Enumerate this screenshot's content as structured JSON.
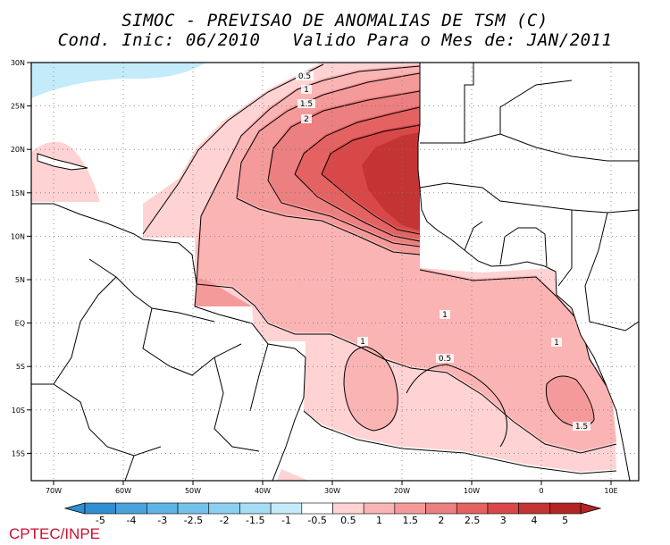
{
  "title_line1": "SIMOC - PREVISAO DE ANOMALIAS DE TSM (C)",
  "title_line2": "Cond. Inic: 06/2010   Valido Para o Mes de: JAN/2011",
  "credit": "CPTEC/INPE",
  "latitude_labels": [
    "30N",
    "25N",
    "20N",
    "15N",
    "10N",
    "5N",
    "EQ",
    "5S",
    "10S",
    "15S"
  ],
  "longitude_labels": [
    "70W",
    "60W",
    "50W",
    "40W",
    "30W",
    "20W",
    "10W",
    "0",
    "10E"
  ],
  "contour_labels": [
    "0.5",
    "1",
    "1.5",
    "2",
    "1",
    "1",
    "0.5",
    "1",
    "1.5"
  ],
  "colorbar": {
    "labels": [
      "-5",
      "-4",
      "-3",
      "-2.5",
      "-2",
      "-1.5",
      "-1",
      "-0.5",
      "0.5",
      "1",
      "1.5",
      "2",
      "2.5",
      "3",
      "4",
      "5"
    ],
    "colors": [
      "#2f8fd1",
      "#4aa3dc",
      "#5fb4e6",
      "#74c2ec",
      "#8ccff1",
      "#a6dcf5",
      "#c4ebfa",
      "#ffffff",
      "#ffd3d3",
      "#fbb4b4",
      "#f59a9a",
      "#ec7f7f",
      "#e46262",
      "#d94848",
      "#c53434",
      "#b32424"
    ]
  },
  "colors": {
    "anomaly_0_5": "#ffd3d3",
    "anomaly_1": "#fbb4b4",
    "anomaly_1_5": "#f59a9a",
    "anomaly_2": "#ec7f7f",
    "anomaly_2_5": "#e46262",
    "anomaly_3": "#d94848",
    "anomaly_4": "#c53434",
    "negative_anomaly": "#c4ebfa",
    "credit": "#c8102e"
  }
}
